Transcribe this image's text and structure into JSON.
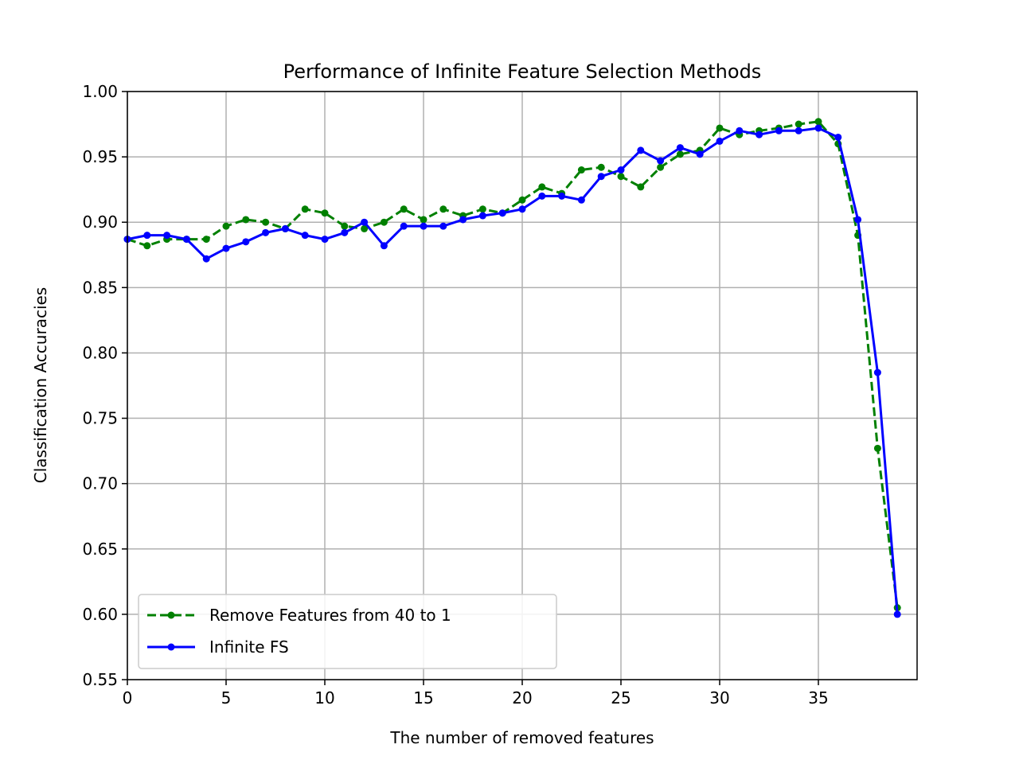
{
  "chart_data": {
    "type": "line",
    "title": "Performance of Infinite Feature Selection Methods",
    "xlabel": "The number of removed features",
    "ylabel": "Classification Accuracies",
    "xlim": [
      0,
      40
    ],
    "ylim": [
      0.55,
      1.0
    ],
    "xticks": [
      0,
      5,
      10,
      15,
      20,
      25,
      30,
      35
    ],
    "yticks": [
      0.55,
      0.6,
      0.65,
      0.7,
      0.75,
      0.8,
      0.85,
      0.9,
      0.95,
      1.0
    ],
    "grid": true,
    "legend_position": "lower-left",
    "x": [
      0,
      1,
      2,
      3,
      4,
      5,
      6,
      7,
      8,
      9,
      10,
      11,
      12,
      13,
      14,
      15,
      16,
      17,
      18,
      19,
      20,
      21,
      22,
      23,
      24,
      25,
      26,
      27,
      28,
      29,
      30,
      31,
      32,
      33,
      34,
      35,
      36,
      37,
      38,
      39
    ],
    "series": [
      {
        "name": "Remove Features from 40 to 1",
        "color": "#008000",
        "style": "dashed",
        "values": [
          0.887,
          0.882,
          0.887,
          0.887,
          0.887,
          0.897,
          0.902,
          0.9,
          0.895,
          0.91,
          0.907,
          0.897,
          0.895,
          0.9,
          0.91,
          0.902,
          0.91,
          0.905,
          0.91,
          0.907,
          0.917,
          0.927,
          0.922,
          0.94,
          0.942,
          0.935,
          0.927,
          0.942,
          0.952,
          0.955,
          0.972,
          0.967,
          0.97,
          0.972,
          0.975,
          0.977,
          0.96,
          0.89,
          0.727,
          0.605
        ]
      },
      {
        "name": "Infinite FS",
        "color": "#0000ff",
        "style": "solid",
        "values": [
          0.887,
          0.89,
          0.89,
          0.887,
          0.872,
          0.88,
          0.885,
          0.892,
          0.895,
          0.89,
          0.887,
          0.892,
          0.9,
          0.882,
          0.897,
          0.897,
          0.897,
          0.902,
          0.905,
          0.907,
          0.91,
          0.92,
          0.92,
          0.917,
          0.935,
          0.94,
          0.955,
          0.947,
          0.957,
          0.952,
          0.962,
          0.97,
          0.967,
          0.97,
          0.97,
          0.972,
          0.965,
          0.902,
          0.785,
          0.6
        ]
      }
    ]
  }
}
